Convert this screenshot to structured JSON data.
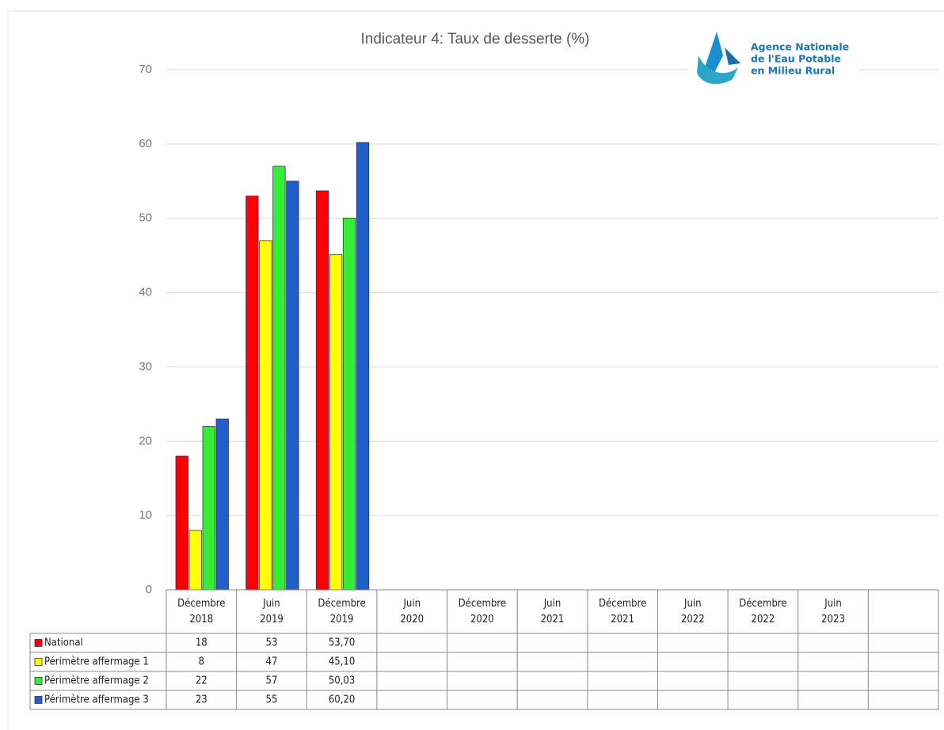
{
  "chart_data": {
    "type": "bar",
    "title": "Indicateur 4: Taux de desserte (%)",
    "categories": [
      "Décembre 2018",
      "Juin 2019",
      "Décembre 2019",
      "Juin 2020",
      "Décembre 2020",
      "Juin 2021",
      "Décembre 2021",
      "Juin 2022",
      "Décembre 2022",
      "Juin 2023",
      null
    ],
    "series": [
      {
        "name": "National",
        "color": "#ff0000",
        "values": [
          18,
          53,
          53.7,
          null,
          null,
          null,
          null,
          null,
          null,
          null,
          null
        ],
        "value_labels": [
          "18",
          "53",
          "53,70",
          null,
          null,
          null,
          null,
          null,
          null,
          null,
          null
        ]
      },
      {
        "name": "Périmètre affermage 1",
        "color": "#ffff00",
        "values": [
          8,
          47,
          45.1,
          null,
          null,
          null,
          null,
          null,
          null,
          null,
          null
        ],
        "value_labels": [
          "8",
          "47",
          "45,10",
          null,
          null,
          null,
          null,
          null,
          null,
          null,
          null
        ]
      },
      {
        "name": "Périmètre affermage 2",
        "color": "#33ee33",
        "values": [
          22,
          57,
          50.03,
          null,
          null,
          null,
          null,
          null,
          null,
          null,
          null
        ],
        "value_labels": [
          "22",
          "57",
          "50,03",
          null,
          null,
          null,
          null,
          null,
          null,
          null,
          null
        ]
      },
      {
        "name": "Périmètre affermage 3",
        "color": "#1f5fc8",
        "values": [
          23,
          55,
          60.2,
          null,
          null,
          null,
          null,
          null,
          null,
          null,
          null
        ],
        "value_labels": [
          "23",
          "55",
          "60,20",
          null,
          null,
          null,
          null,
          null,
          null,
          null,
          null
        ]
      }
    ],
    "ylim": [
      0,
      70
    ],
    "yticks": [
      0,
      10,
      20,
      30,
      40,
      50,
      60,
      70
    ],
    "grid": true
  },
  "logo": {
    "lines": [
      "Agence Nationale",
      "de l'Eau Potable",
      "en Milieu Rural"
    ]
  }
}
